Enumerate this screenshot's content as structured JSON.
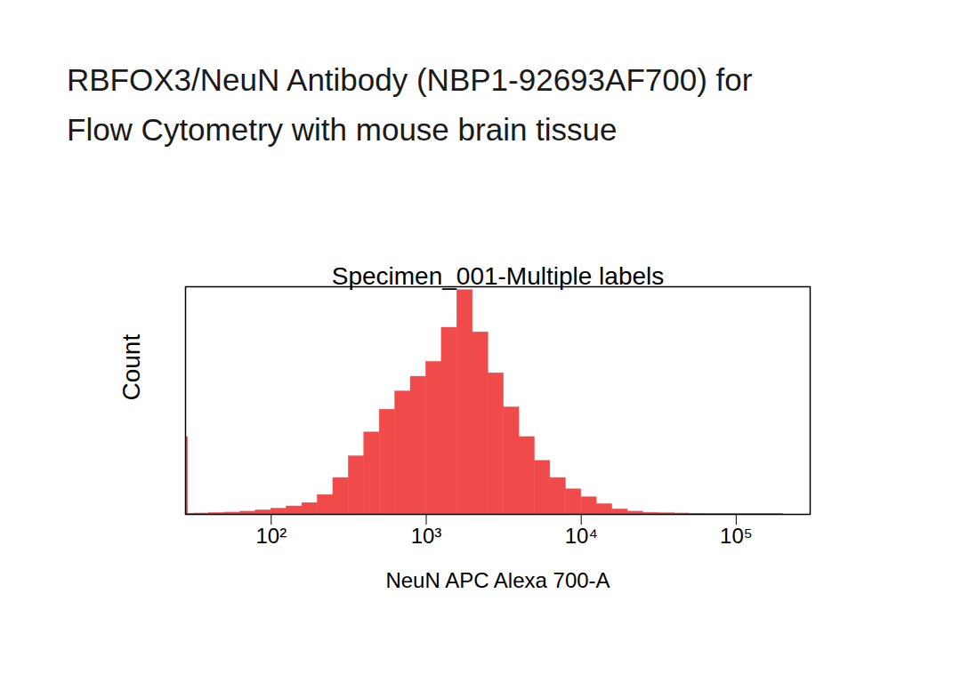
{
  "chart_data": {
    "type": "histogram",
    "title": [
      "RBFOX3/NeuN Antibody (NBP1-92693AF700) for",
      "Flow Cytometry with mouse brain tissue"
    ],
    "subtitle": "Specimen_001-Multiple labels",
    "x_label": "NeuN APC Alexa 700-A",
    "y_label": "Count",
    "log": "x",
    "bins": [
      28,
      29,
      31.6,
      39.8,
      50.1,
      63.1,
      79.4,
      100,
      125.9,
      158.5,
      199.5,
      251.2,
      316.2,
      398.1,
      501.2,
      631,
      794.3,
      1000,
      1258.9,
      1584.9,
      1995.3,
      2511.9,
      3162.3,
      3981.1,
      5011.9,
      6309.6,
      7943.3,
      10000,
      12589,
      15849,
      19953,
      25119,
      31623,
      39811,
      50119,
      63096,
      79433,
      100000,
      125893,
      158489,
      199526,
      251189
    ],
    "values": [
      340,
      3,
      4,
      6,
      8,
      12,
      18,
      25,
      35,
      50,
      85,
      160,
      255,
      360,
      460,
      540,
      605,
      670,
      820,
      985,
      800,
      620,
      470,
      340,
      235,
      160,
      110,
      75,
      45,
      22,
      12,
      7,
      5,
      4,
      3,
      2,
      2,
      1,
      1,
      1,
      0
    ],
    "color": "#f04a4a",
    "xlim": [
      28,
      300000
    ],
    "xticks": [
      {
        "value": 100,
        "label": "10²"
      },
      {
        "value": 1000,
        "label": "10³"
      },
      {
        "value": 10000,
        "label": "10⁴"
      },
      {
        "value": 100000,
        "label": "10⁵"
      }
    ],
    "ylim": [
      0,
      1000
    ],
    "tick_labels": "x",
    "grid": false
  }
}
